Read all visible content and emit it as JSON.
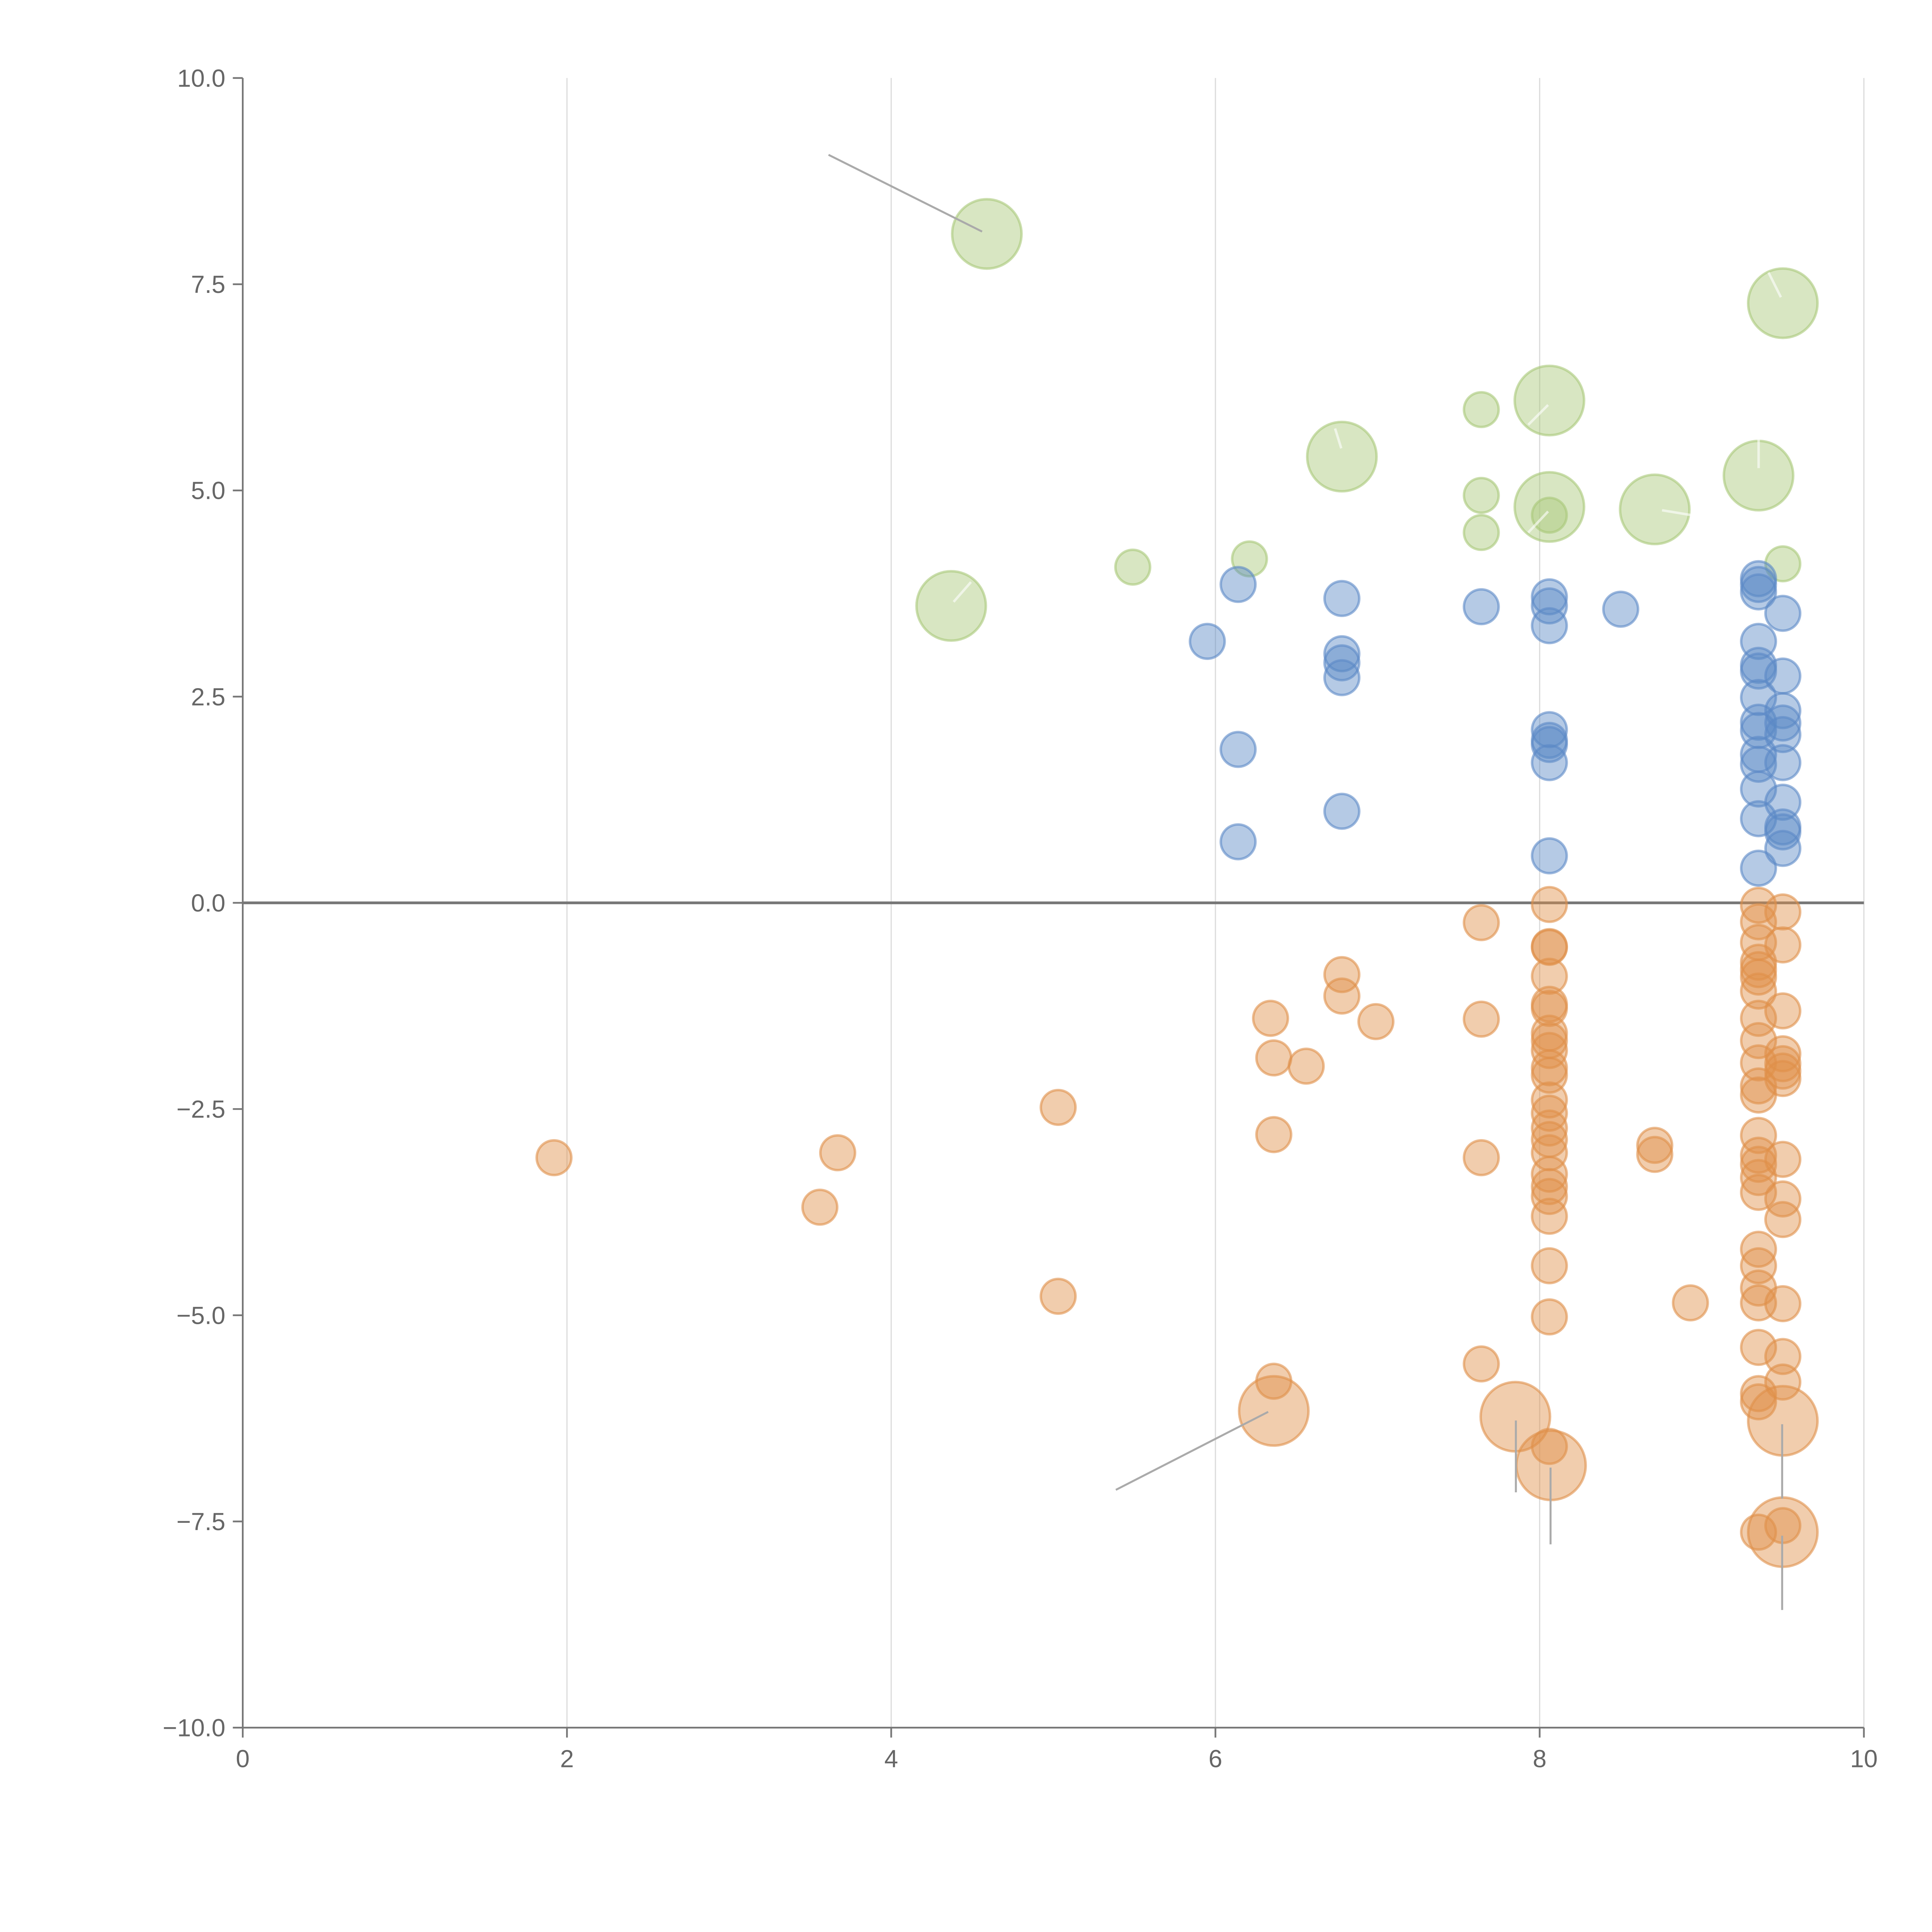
{
  "chart_data": {
    "type": "scatter",
    "title": "",
    "xlabel": "",
    "ylabel": "",
    "xlim": [
      0,
      10
    ],
    "ylim": [
      -10,
      10
    ],
    "xticks": [
      0,
      2,
      4,
      6,
      8,
      10
    ],
    "xtick_labels": [
      "0",
      "2",
      "4",
      "6",
      "8",
      "10"
    ],
    "yticks": [
      -10,
      -7.5,
      -5,
      -2.5,
      0,
      2.5,
      5,
      7.5,
      10
    ],
    "ytick_labels": [
      "−10.0",
      "−7.5",
      "−5.0",
      "−2.5",
      "0.0",
      "2.5",
      "5.0",
      "7.5",
      "10.0"
    ],
    "grid": "vertical",
    "reference_line_y": 0,
    "series": [
      {
        "name": "green",
        "color": "#a8c878",
        "points": [
          [
            4.59,
            8.11,
            4
          ],
          [
            9.5,
            7.27,
            4
          ],
          [
            8.06,
            6.09,
            4
          ],
          [
            7.64,
            5.98,
            1
          ],
          [
            6.78,
            5.41,
            4
          ],
          [
            9.35,
            5.18,
            4
          ],
          [
            7.64,
            4.94,
            1
          ],
          [
            8.06,
            4.8,
            4
          ],
          [
            8.71,
            4.77,
            4
          ],
          [
            8.06,
            4.7,
            1
          ],
          [
            7.64,
            4.49,
            1
          ],
          [
            6.21,
            4.17,
            1
          ],
          [
            5.49,
            4.07,
            1
          ],
          [
            9.5,
            4.11,
            1
          ],
          [
            4.37,
            3.6,
            4
          ]
        ]
      },
      {
        "name": "blue",
        "color": "#5b89c6",
        "points": [
          [
            6.14,
            3.86,
            1
          ],
          [
            5.95,
            3.17,
            1
          ],
          [
            6.14,
            1.86,
            1
          ],
          [
            6.14,
            0.74,
            1
          ],
          [
            6.78,
            3.69,
            1
          ],
          [
            6.78,
            3.02,
            1
          ],
          [
            6.78,
            2.91,
            1
          ],
          [
            6.78,
            2.73,
            1
          ],
          [
            6.78,
            1.11,
            1
          ],
          [
            7.64,
            3.59,
            1
          ],
          [
            8.06,
            3.71,
            1
          ],
          [
            8.06,
            3.6,
            1
          ],
          [
            8.06,
            3.36,
            1
          ],
          [
            8.5,
            3.56,
            1
          ],
          [
            8.06,
            2.1,
            1
          ],
          [
            8.06,
            1.97,
            1
          ],
          [
            8.06,
            1.92,
            1
          ],
          [
            8.06,
            1.7,
            1
          ],
          [
            8.06,
            0.57,
            1
          ],
          [
            9.35,
            3.93,
            1
          ],
          [
            9.35,
            3.86,
            1
          ],
          [
            9.35,
            3.77,
            1
          ],
          [
            9.35,
            3.17,
            1
          ],
          [
            9.35,
            2.88,
            1
          ],
          [
            9.35,
            2.81,
            1
          ],
          [
            9.35,
            2.49,
            1
          ],
          [
            9.35,
            2.19,
            1
          ],
          [
            9.35,
            2.09,
            1
          ],
          [
            9.35,
            1.8,
            1
          ],
          [
            9.35,
            1.68,
            1
          ],
          [
            9.35,
            1.38,
            1
          ],
          [
            9.35,
            1.02,
            1
          ],
          [
            9.35,
            0.42,
            1
          ],
          [
            9.5,
            3.51,
            1
          ],
          [
            9.5,
            2.75,
            1
          ],
          [
            9.5,
            2.33,
            1
          ],
          [
            9.5,
            2.18,
            1
          ],
          [
            9.5,
            2.04,
            1
          ],
          [
            9.5,
            1.7,
            1
          ],
          [
            9.5,
            1.22,
            1
          ],
          [
            9.5,
            0.92,
            1
          ],
          [
            9.5,
            0.86,
            1
          ],
          [
            9.5,
            0.66,
            1
          ]
        ]
      },
      {
        "name": "orange",
        "color": "#e0904a",
        "points": [
          [
            1.92,
            -3.09,
            1
          ],
          [
            3.67,
            -3.03,
            1
          ],
          [
            3.56,
            -3.69,
            1
          ],
          [
            5.03,
            -2.48,
            1
          ],
          [
            5.03,
            -4.77,
            1
          ],
          [
            6.34,
            -1.4,
            1
          ],
          [
            6.36,
            -1.88,
            1
          ],
          [
            6.36,
            -2.81,
            1
          ],
          [
            6.56,
            -1.98,
            1
          ],
          [
            6.36,
            -5.8,
            1
          ],
          [
            6.78,
            -0.87,
            1
          ],
          [
            6.78,
            -1.13,
            1
          ],
          [
            6.99,
            -1.44,
            1
          ],
          [
            7.64,
            -0.24,
            1
          ],
          [
            7.64,
            -1.41,
            1
          ],
          [
            7.64,
            -3.09,
            1
          ],
          [
            7.64,
            -5.59,
            1
          ],
          [
            8.71,
            -2.94,
            1
          ],
          [
            8.71,
            -3.05,
            1
          ],
          [
            8.93,
            -4.85,
            1
          ],
          [
            8.06,
            -0.02,
            1
          ],
          [
            8.06,
            -0.53,
            1
          ],
          [
            8.06,
            -0.54,
            1
          ],
          [
            8.06,
            -0.89,
            1
          ],
          [
            8.06,
            -1.23,
            1
          ],
          [
            8.06,
            -1.28,
            1
          ],
          [
            8.06,
            -1.58,
            1
          ],
          [
            8.06,
            -1.67,
            1
          ],
          [
            8.06,
            -1.79,
            1
          ],
          [
            8.06,
            -2.0,
            1
          ],
          [
            8.06,
            -2.09,
            1
          ],
          [
            8.06,
            -2.39,
            1
          ],
          [
            8.06,
            -2.55,
            1
          ],
          [
            8.06,
            -2.73,
            1
          ],
          [
            8.06,
            -2.87,
            1
          ],
          [
            8.06,
            -3.03,
            1
          ],
          [
            8.06,
            -3.29,
            1
          ],
          [
            8.06,
            -3.44,
            1
          ],
          [
            8.06,
            -3.56,
            1
          ],
          [
            8.06,
            -3.8,
            1
          ],
          [
            8.06,
            -4.4,
            1
          ],
          [
            8.06,
            -5.02,
            1
          ],
          [
            8.06,
            -6.59,
            1
          ],
          [
            9.35,
            -0.03,
            1
          ],
          [
            9.35,
            -0.23,
            1
          ],
          [
            9.35,
            -0.48,
            1
          ],
          [
            9.35,
            -0.72,
            1
          ],
          [
            9.35,
            -0.81,
            1
          ],
          [
            9.35,
            -0.9,
            1
          ],
          [
            9.35,
            -1.07,
            1
          ],
          [
            9.35,
            -1.4,
            1
          ],
          [
            9.35,
            -1.67,
            1
          ],
          [
            9.35,
            -1.94,
            1
          ],
          [
            9.35,
            -2.22,
            1
          ],
          [
            9.35,
            -2.33,
            1
          ],
          [
            9.35,
            -2.82,
            1
          ],
          [
            9.35,
            -3.06,
            1
          ],
          [
            9.35,
            -3.17,
            1
          ],
          [
            9.35,
            -3.33,
            1
          ],
          [
            9.35,
            -3.51,
            1
          ],
          [
            9.35,
            -4.2,
            1
          ],
          [
            9.35,
            -4.4,
            1
          ],
          [
            9.35,
            -4.67,
            1
          ],
          [
            9.35,
            -4.85,
            1
          ],
          [
            9.35,
            -5.39,
            1
          ],
          [
            9.35,
            -5.95,
            1
          ],
          [
            9.35,
            -6.05,
            1
          ],
          [
            9.35,
            -7.63,
            1
          ],
          [
            9.5,
            -0.11,
            1
          ],
          [
            9.5,
            -0.51,
            1
          ],
          [
            9.5,
            -1.31,
            1
          ],
          [
            9.5,
            -1.83,
            1
          ],
          [
            9.5,
            -1.95,
            1
          ],
          [
            9.5,
            -2.04,
            1
          ],
          [
            9.5,
            -2.13,
            1
          ],
          [
            9.5,
            -3.11,
            1
          ],
          [
            9.5,
            -3.59,
            1
          ],
          [
            9.5,
            -3.84,
            1
          ],
          [
            9.5,
            -4.86,
            1
          ],
          [
            9.5,
            -5.5,
            1
          ],
          [
            9.5,
            -5.81,
            1
          ],
          [
            9.5,
            -7.55,
            1
          ],
          [
            6.36,
            -6.16,
            4
          ],
          [
            7.85,
            -6.23,
            4
          ],
          [
            8.07,
            -6.82,
            4
          ],
          [
            9.5,
            -6.28,
            4
          ],
          [
            9.5,
            -7.63,
            4
          ]
        ]
      }
    ]
  }
}
